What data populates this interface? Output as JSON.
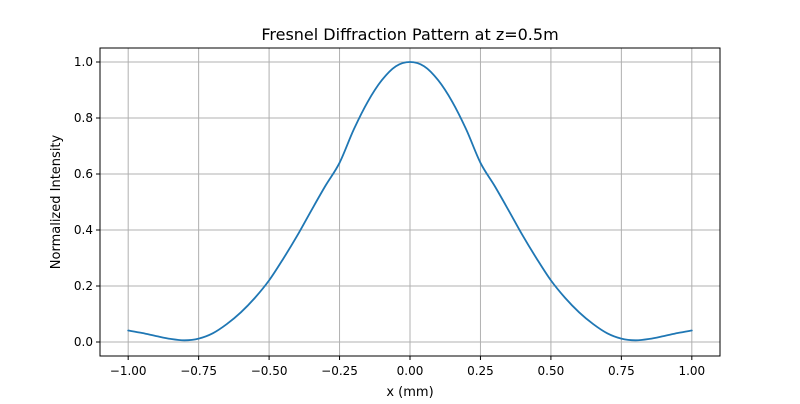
{
  "chart_data": {
    "type": "line",
    "title": "Fresnel Diffraction Pattern at z=0.5m",
    "xlabel": "x (mm)",
    "ylabel": "Normalized Intensity",
    "xlim": [
      -1.1,
      1.1
    ],
    "ylim": [
      -0.05,
      1.05
    ],
    "grid": true,
    "x_ticks": [
      -1.0,
      -0.75,
      -0.5,
      -0.25,
      0.0,
      0.25,
      0.5,
      0.75,
      1.0
    ],
    "x_tick_labels": [
      "−1.00",
      "−0.75",
      "−0.50",
      "−0.25",
      "0.00",
      "0.25",
      "0.50",
      "0.75",
      "1.00"
    ],
    "y_ticks": [
      0.0,
      0.2,
      0.4,
      0.6,
      0.8,
      1.0
    ],
    "y_tick_labels": [
      "0.0",
      "0.2",
      "0.4",
      "0.6",
      "0.8",
      "1.0"
    ],
    "series": [
      {
        "color": "#1f77b4",
        "x": [
          -1.0,
          -0.95,
          -0.9,
          -0.85,
          -0.8,
          -0.75,
          -0.7,
          -0.65,
          -0.6,
          -0.55,
          -0.5,
          -0.45,
          -0.4,
          -0.35,
          -0.3,
          -0.25,
          -0.2,
          -0.15,
          -0.1,
          -0.05,
          0.0,
          0.05,
          0.1,
          0.15,
          0.2,
          0.25,
          0.3,
          0.35,
          0.4,
          0.45,
          0.5,
          0.55,
          0.6,
          0.65,
          0.7,
          0.75,
          0.8,
          0.85,
          0.9,
          0.95,
          1.0
        ],
        "y": [
          0.041,
          0.032,
          0.021,
          0.011,
          0.006,
          0.012,
          0.031,
          0.064,
          0.106,
          0.158,
          0.22,
          0.297,
          0.38,
          0.47,
          0.558,
          0.64,
          0.758,
          0.858,
          0.935,
          0.985,
          1.0,
          0.985,
          0.935,
          0.858,
          0.758,
          0.64,
          0.558,
          0.47,
          0.38,
          0.297,
          0.22,
          0.158,
          0.106,
          0.064,
          0.031,
          0.012,
          0.006,
          0.011,
          0.021,
          0.032,
          0.041
        ]
      }
    ]
  }
}
